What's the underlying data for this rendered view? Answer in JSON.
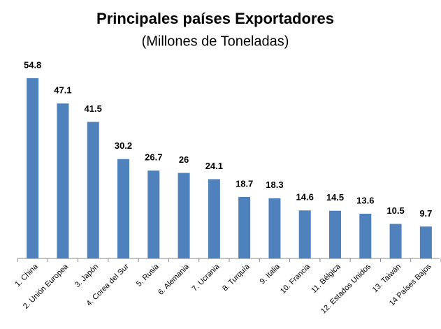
{
  "chart_data": {
    "type": "bar",
    "title": "Principales países Exportadores",
    "subtitle": "(Millones de Toneladas)",
    "categories": [
      "1. China",
      "2. Unión Europea",
      "3. Japón",
      "4. Corea del Sur",
      "5. Rusia",
      "6. Alemania",
      "7. Ucrania",
      "8. Turquía",
      "9. Italia",
      "10. Francia",
      "11. Bélgica",
      "12. Estados Unidos",
      "13. Taiwán",
      "14 Países Bajos"
    ],
    "values": [
      54.8,
      47.1,
      41.5,
      30.2,
      26.7,
      26,
      24.1,
      18.7,
      18.3,
      14.6,
      14.5,
      13.6,
      10.5,
      9.7
    ],
    "color": "#4f81bd"
  }
}
